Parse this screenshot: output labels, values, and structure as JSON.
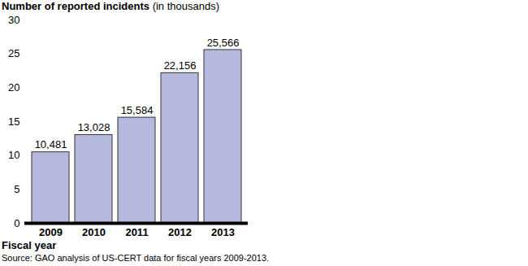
{
  "chart_data": {
    "type": "bar",
    "title": "Number of reported incidents (in thousands)",
    "x_label": "Fiscal year",
    "caption": "Source: GAO analysis of US-CERT data for fiscal years 2009-2013.",
    "categories": [
      "2009",
      "2010",
      "2011",
      "2012",
      "2013"
    ],
    "values": [
      10.481,
      13.028,
      15.584,
      22.156,
      25.566
    ],
    "value_labels": [
      "10,481",
      "13,028",
      "15,584",
      "22,156",
      "25,566"
    ],
    "color": "#b4b9dd",
    "ylim": [
      0,
      30
    ],
    "yticks": [
      0,
      5,
      10,
      15,
      20,
      25,
      30
    ],
    "grid": false,
    "data_labels": true
  }
}
